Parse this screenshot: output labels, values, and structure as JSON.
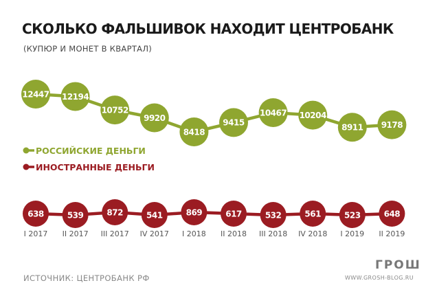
{
  "header": {
    "title": "СКОЛЬКО ФАЛЬШИВОК НАХОДИТ ЦЕНТРОБАНК",
    "subtitle": "(КУПЮР И МОНЕТ В КВАРТАЛ)"
  },
  "footer": {
    "source": "ИСТОЧНИК: ЦЕНТРОБАНК РФ",
    "brand": "ГРОШ",
    "url": "WWW.GROSH-BLOG.RU"
  },
  "colors": {
    "russian": "#8fa630",
    "foreign": "#9b1c22",
    "axis_text": "#555555"
  },
  "chart_data": {
    "type": "line",
    "categories": [
      "I 2017",
      "II 2017",
      "III 2017",
      "IV 2017",
      "I 2018",
      "II 2018",
      "III 2018",
      "IV 2018",
      "I 2019",
      "II 2019"
    ],
    "series": [
      {
        "name": "РОССИЙСКИЕ ДЕНЬГИ",
        "values": [
          12447,
          12194,
          10752,
          9920,
          8418,
          9415,
          10467,
          10204,
          8911,
          9178
        ]
      },
      {
        "name": "ИНОСТРАННЫЕ ДЕНЬГИ",
        "values": [
          638,
          539,
          872,
          541,
          869,
          617,
          532,
          561,
          523,
          648
        ]
      }
    ],
    "legend": "left"
  }
}
